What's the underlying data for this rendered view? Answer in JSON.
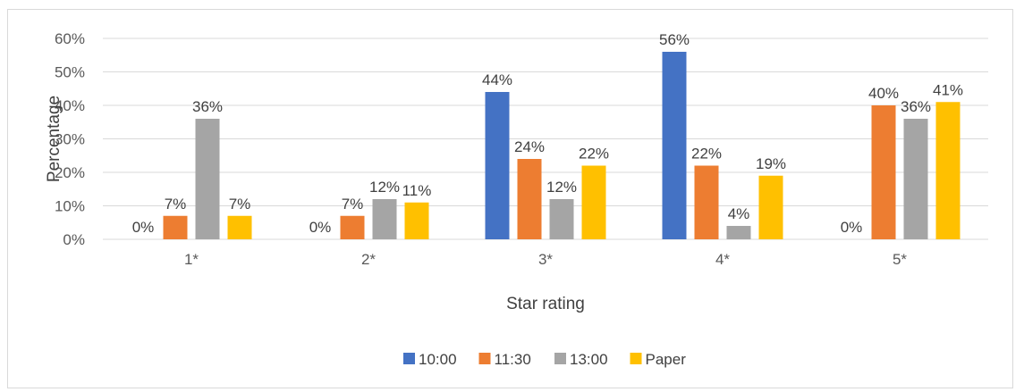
{
  "chart_data": {
    "type": "bar",
    "categories": [
      "1*",
      "2*",
      "3*",
      "4*",
      "5*"
    ],
    "series": [
      {
        "name": "10:00",
        "values": [
          0,
          0,
          44,
          56,
          0
        ],
        "labels": [
          "0%",
          "0%",
          "44%",
          "56%",
          "0%"
        ],
        "color": "#4472c4"
      },
      {
        "name": "11:30",
        "values": [
          7,
          7,
          24,
          22,
          40
        ],
        "labels": [
          "7%",
          "7%",
          "24%",
          "22%",
          "40%"
        ],
        "color": "#ed7d31"
      },
      {
        "name": "13:00",
        "values": [
          36,
          12,
          12,
          4,
          36
        ],
        "labels": [
          "36%",
          "12%",
          "12%",
          "4%",
          "36%"
        ],
        "color": "#a5a5a5"
      },
      {
        "name": "Paper",
        "values": [
          7,
          11,
          22,
          19,
          41
        ],
        "labels": [
          "7%",
          "11%",
          "22%",
          "19%",
          "41%"
        ],
        "color": "#ffc000"
      }
    ],
    "yticks": [
      0,
      10,
      20,
      30,
      40,
      50,
      60
    ],
    "ytick_labels": [
      "0%",
      "10%",
      "20%",
      "30%",
      "40%",
      "50%",
      "60%"
    ],
    "ylim": [
      0,
      60
    ],
    "xlabel": "Star rating",
    "ylabel": "Percentage",
    "grid": true,
    "legend_position": "bottom"
  }
}
